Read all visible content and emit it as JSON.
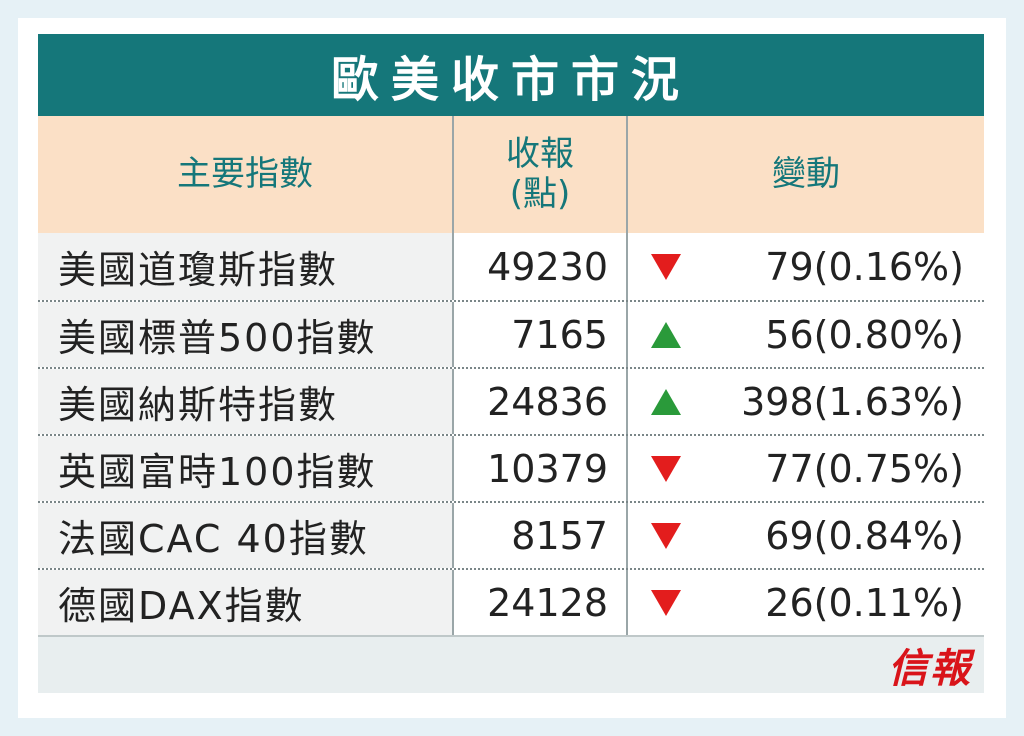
{
  "title": "歐美收市市況",
  "headers": {
    "index": "主要指數",
    "close_line1": "收報",
    "close_line2": "(點)",
    "change": "變動"
  },
  "rows": [
    {
      "name": "美國道瓊斯指數",
      "close": "49230",
      "direction": "down",
      "change": "79(0.16%)"
    },
    {
      "name": "美國標普500指數",
      "close": "7165",
      "direction": "up",
      "change": "56(0.80%)"
    },
    {
      "name": "美國納斯特指數",
      "close": "24836",
      "direction": "up",
      "change": "398(1.63%)"
    },
    {
      "name": "英國富時100指數",
      "close": "10379",
      "direction": "down",
      "change": "77(0.75%)"
    },
    {
      "name": "法國CAC 40指數",
      "close": "8157",
      "direction": "down",
      "change": "69(0.84%)"
    },
    {
      "name": "德國DAX指數",
      "close": "24128",
      "direction": "down",
      "change": "26(0.11%)"
    }
  ],
  "logo_text": "信報",
  "colors": {
    "title_bg": "#15777a",
    "header_bg": "#fbe0c6",
    "down": "#e31d1d",
    "up": "#2a9a3a",
    "logo": "#d9141a"
  }
}
